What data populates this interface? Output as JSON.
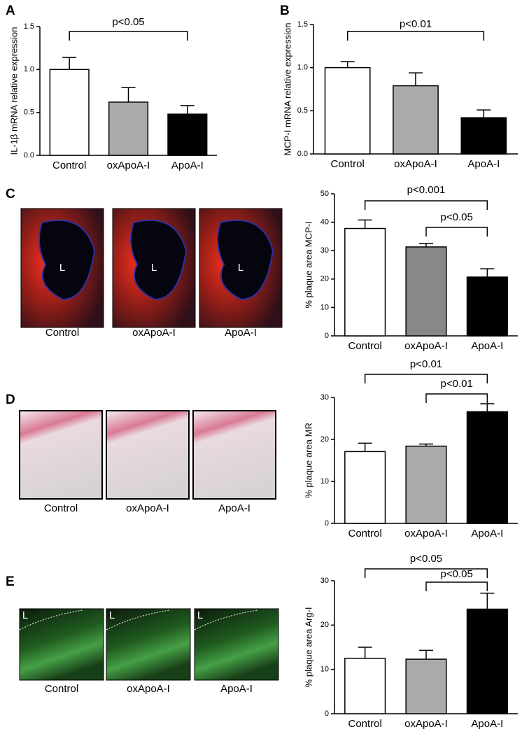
{
  "panel_labels": [
    "A",
    "B",
    "C",
    "D",
    "E"
  ],
  "micrographs": [
    {
      "images": [
        {
          "caption": "Control",
          "lumen": "L"
        },
        {
          "caption": "oxApoA-I",
          "lumen": "L"
        },
        {
          "caption": "ApoA-I",
          "lumen": "L"
        }
      ]
    },
    {
      "images": [
        {
          "caption": "Control"
        },
        {
          "caption": "oxApoA-I"
        },
        {
          "caption": "ApoA-I"
        }
      ]
    },
    {
      "images": [
        {
          "caption": "Control",
          "lumen": "L"
        },
        {
          "caption": "oxApoA-I",
          "lumen": "L"
        },
        {
          "caption": "ApoA-I",
          "lumen": "L"
        }
      ]
    }
  ],
  "chart_data": [
    {
      "type": "bar",
      "y_label": "IL-1β mRNA relative expression",
      "categories": [
        "Control",
        "oxApoA-I",
        "ApoA-I"
      ],
      "values": [
        1.0,
        0.62,
        0.48
      ],
      "errors": [
        0.14,
        0.17,
        0.1
      ],
      "colors": [
        "#ffffff",
        "#aaaaaa",
        "#000000"
      ],
      "ylim": [
        0,
        1.5
      ],
      "yticks": [
        {
          "value": 0,
          "label": "0.0"
        },
        0.5,
        {
          "value": 1,
          "label": "1.0"
        },
        1.5
      ],
      "annotations": [
        {
          "text": "p<0.05",
          "between": [
            "Control",
            "ApoA-I"
          ]
        }
      ]
    },
    {
      "type": "bar",
      "y_label": "MCP-I mRNA relative expression",
      "categories": [
        "Control",
        "oxApoA-I",
        "ApoA-I"
      ],
      "values": [
        1.0,
        0.79,
        0.42
      ],
      "errors": [
        0.07,
        0.15,
        0.09
      ],
      "colors": [
        "#ffffff",
        "#aaaaaa",
        "#000000"
      ],
      "ylim": [
        0,
        1.5
      ],
      "yticks": [
        {
          "value": 0,
          "label": "0.0"
        },
        0.5,
        {
          "value": 1,
          "label": "1.0"
        },
        1.5
      ],
      "annotations": [
        {
          "text": "p<0.01",
          "between": [
            "Control",
            "ApoA-I"
          ]
        }
      ]
    },
    {
      "type": "bar",
      "y_label": "% plaque area MCP-I",
      "categories": [
        "Control",
        "oxApoA-I",
        "ApoA-I"
      ],
      "values": [
        37.8,
        31.3,
        20.7
      ],
      "errors": [
        3,
        1.2,
        2.9
      ],
      "colors": [
        "#ffffff",
        "#888888",
        "#000000"
      ],
      "ylim": [
        0,
        50
      ],
      "yticks": [
        0,
        10,
        20,
        30,
        40,
        50
      ],
      "annotations": [
        {
          "text": "p<0.001",
          "between": [
            "Control",
            "ApoA-I"
          ]
        },
        {
          "text": "p<0.05",
          "between": [
            "oxApoA-I",
            "ApoA-I"
          ]
        }
      ]
    },
    {
      "type": "bar",
      "y_label": "% plaque area MR",
      "categories": [
        "Control",
        "oxApoA-I",
        "ApoA-I"
      ],
      "values": [
        17.1,
        18.4,
        26.6
      ],
      "errors": [
        2,
        0.5,
        1.9
      ],
      "colors": [
        "#ffffff",
        "#aaaaaa",
        "#000000"
      ],
      "ylim": [
        0,
        30
      ],
      "yticks": [
        0,
        10,
        20,
        30
      ],
      "annotations": [
        {
          "text": "p<0.01",
          "between": [
            "Control",
            "ApoA-I"
          ]
        },
        {
          "text": "p<0.01",
          "between": [
            "oxApoA-I",
            "ApoA-I"
          ]
        }
      ]
    },
    {
      "type": "bar",
      "y_label": "% plaque area Arg-I",
      "categories": [
        "Control",
        "oxApoA-I",
        "ApoA-I"
      ],
      "values": [
        12.5,
        12.3,
        23.6
      ],
      "errors": [
        2.5,
        2,
        3.6
      ],
      "colors": [
        "#ffffff",
        "#aaaaaa",
        "#000000"
      ],
      "ylim": [
        0,
        30
      ],
      "yticks": [
        0,
        10,
        20,
        30
      ],
      "annotations": [
        {
          "text": "p<0.05",
          "between": [
            "Control",
            "ApoA-I"
          ]
        },
        {
          "text": "p<0.05",
          "between": [
            "oxApoA-I",
            "ApoA-I"
          ]
        }
      ]
    }
  ]
}
